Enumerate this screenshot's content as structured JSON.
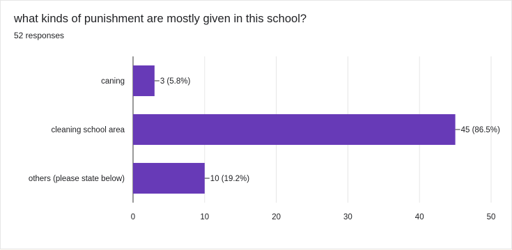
{
  "question": "what kinds of punishment are mostly given in this school?",
  "responses": "52 responses",
  "colors": {
    "bar": "#673ab7",
    "grid": "#e6e6e6",
    "axis": "#333333"
  },
  "chart_data": {
    "type": "bar",
    "orientation": "horizontal",
    "categories": [
      "caning",
      "cleaning school area",
      "others (please state below)"
    ],
    "values": [
      3,
      45,
      10
    ],
    "value_labels": [
      "3 (5.8%)",
      "45 (86.5%)",
      "10 (19.2%)"
    ],
    "xlim": [
      0,
      50
    ],
    "xticks": [
      0,
      10,
      20,
      30,
      40,
      50
    ],
    "grid": true
  }
}
